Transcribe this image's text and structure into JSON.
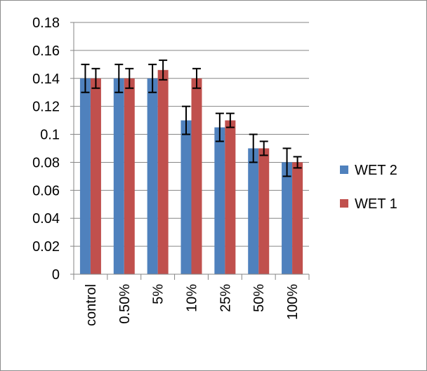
{
  "chart_data": {
    "type": "bar",
    "categories": [
      "control",
      "0.50%",
      "5%",
      "10%",
      "25%",
      "50%",
      "100%"
    ],
    "series": [
      {
        "name": "WET 2",
        "color": "#4F81BD",
        "values": [
          0.14,
          0.14,
          0.14,
          0.11,
          0.105,
          0.09,
          0.08
        ],
        "error": [
          0.01,
          0.01,
          0.01,
          0.01,
          0.01,
          0.01,
          0.01
        ]
      },
      {
        "name": "WET 1",
        "color": "#C0504D",
        "values": [
          0.14,
          0.14,
          0.146,
          0.14,
          0.11,
          0.09,
          0.08
        ],
        "error": [
          0.007,
          0.007,
          0.007,
          0.007,
          0.005,
          0.005,
          0.004
        ]
      }
    ],
    "yticks": [
      "0",
      "0.02",
      "0.04",
      "0.06",
      "0.08",
      "0.1",
      "0.12",
      "0.14",
      "0.16",
      "0.18"
    ],
    "ylim": [
      0,
      0.18
    ],
    "grid": true,
    "legend_position": "right"
  }
}
